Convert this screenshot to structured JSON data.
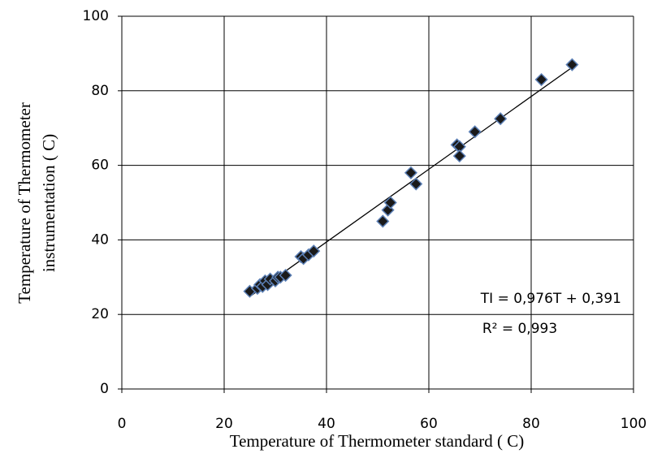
{
  "chart_data": {
    "type": "scatter",
    "x_label": "Temperature of Thermometer standard ( C)",
    "y_label": [
      "Temperature of Thermometer",
      "instrumentation ( C)"
    ],
    "series": [
      {
        "color": "#1a1a1a",
        "x": [
          25,
          26.5,
          27,
          27.5,
          28,
          28.5,
          29,
          30,
          30.5,
          31,
          32,
          35,
          35.5,
          36.5,
          37.5,
          51,
          52,
          52.5,
          56.5,
          57.5,
          65.5,
          66,
          66,
          69,
          74,
          82,
          88
        ],
        "values": [
          26.2,
          27,
          28,
          27.5,
          29,
          28,
          29.5,
          29,
          30,
          30,
          30.5,
          35.5,
          35,
          36,
          37,
          45,
          48,
          50,
          58,
          55,
          65.5,
          65,
          62.5,
          69,
          72.5,
          83,
          87
        ]
      }
    ],
    "trendline": {
      "slope": 0.976,
      "intercept": 0.391,
      "color": "#000000"
    },
    "annotations": [
      "TI = 0,976T + 0,391",
      "R² = 0,993"
    ],
    "xlim": [
      0,
      100
    ],
    "xticks": [
      0,
      20,
      40,
      60,
      80,
      100
    ],
    "ylim": [
      0,
      100
    ],
    "yticks": [
      0,
      20,
      40,
      60,
      80,
      100
    ],
    "grid": true
  }
}
